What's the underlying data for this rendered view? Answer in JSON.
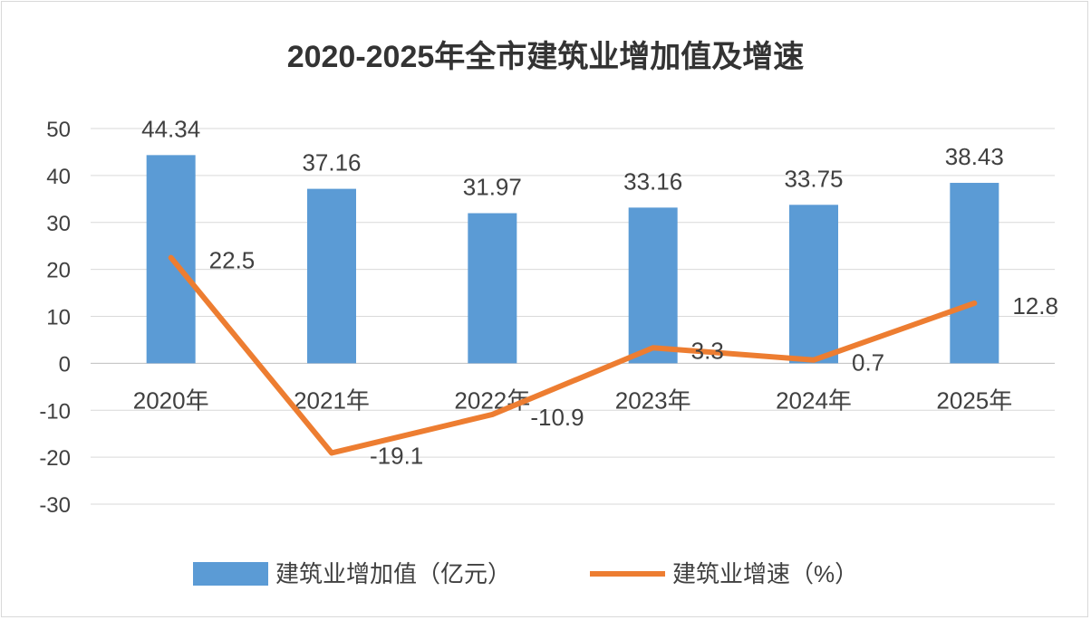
{
  "chart_data": {
    "type": "bar+line",
    "title": "2020-2025年全市建筑业增加值及增速",
    "categories": [
      "2020年",
      "2021年",
      "2022年",
      "2023年",
      "2024年",
      "2025年"
    ],
    "series": [
      {
        "name": "建筑业增加值（亿元）",
        "type": "bar",
        "color": "#5b9bd5",
        "values": [
          44.34,
          37.16,
          31.97,
          33.16,
          33.75,
          38.43
        ],
        "labels": [
          "44.34",
          "37.16",
          "31.97",
          "33.16",
          "33.75",
          "38.43"
        ]
      },
      {
        "name": "建筑业增速（%）",
        "type": "line",
        "color": "#ed7d31",
        "values": [
          22.5,
          -19.1,
          -10.9,
          3.3,
          0.7,
          12.8
        ],
        "labels": [
          "22.5",
          "-19.1",
          "-10.9",
          "3.3",
          "0.7",
          "12.8"
        ]
      }
    ],
    "ylim": [
      -30,
      50
    ],
    "yticks": [
      50,
      40,
      30,
      20,
      10,
      0,
      -10,
      -20,
      -30
    ],
    "grid": true,
    "legend": "bottom"
  }
}
